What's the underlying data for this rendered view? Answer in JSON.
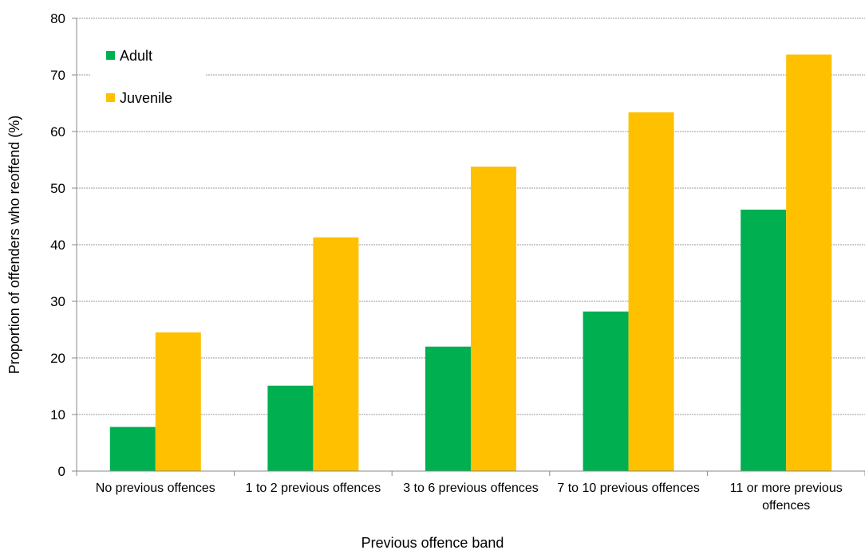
{
  "chart_data": {
    "type": "bar",
    "xlabel": "Previous offence band",
    "ylabel": "Proportion of offenders who reoffend (%)",
    "categories": [
      "No previous offences",
      "1 to 2 previous offences",
      "3 to 6 previous offences",
      "7 to 10 previous offences",
      "11 or more previous offences"
    ],
    "series": [
      {
        "name": "Adult",
        "color": "#00b050",
        "values": [
          7.8,
          15.1,
          22.0,
          28.2,
          46.2
        ]
      },
      {
        "name": "Juvenile",
        "color": "#ffc000",
        "values": [
          24.5,
          41.3,
          53.8,
          63.4,
          73.6
        ]
      }
    ],
    "ylim": [
      0,
      80
    ],
    "yticks": [
      0,
      10,
      20,
      30,
      40,
      50,
      60,
      70,
      80
    ],
    "grid": true,
    "legend": "upper left"
  }
}
